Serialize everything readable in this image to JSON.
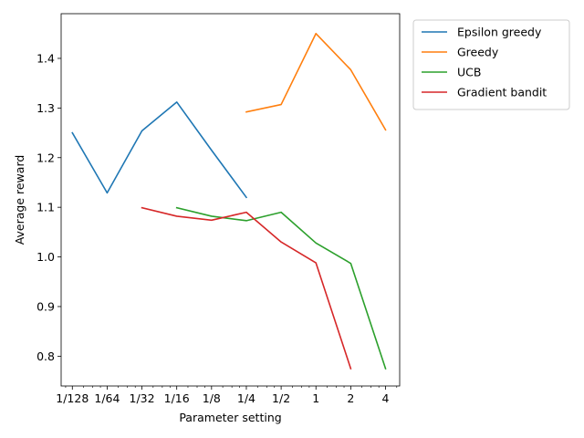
{
  "chart_data": {
    "type": "line",
    "xlabel": "Parameter setting",
    "ylabel": "Average reward",
    "xscale": "log2",
    "xlim": [
      0.00625,
      5.3
    ],
    "ylim": [
      0.74,
      1.49
    ],
    "x_tick_values": [
      0.0078125,
      0.015625,
      0.03125,
      0.0625,
      0.125,
      0.25,
      0.5,
      1,
      2,
      4
    ],
    "x_tick_labels": [
      "1/128",
      "1/64",
      "1/32",
      "1/16",
      "1/8",
      "1/4",
      "1/2",
      "1",
      "2",
      "4"
    ],
    "y_ticks": [
      0.8,
      0.9,
      1.0,
      1.1,
      1.2,
      1.3,
      1.4
    ],
    "y_tick_labels": [
      "0.8",
      "0.9",
      "1.0",
      "1.1",
      "1.2",
      "1.3",
      "1.4"
    ],
    "grid": false,
    "legend_position": "outside-top-right",
    "series": [
      {
        "name": "Epsilon greedy",
        "color": "#1f77b4",
        "x": [
          0.0078125,
          0.015625,
          0.03125,
          0.0625,
          0.125,
          0.25
        ],
        "values": [
          1.25,
          1.129,
          1.254,
          1.312,
          1.215,
          1.12
        ]
      },
      {
        "name": "Greedy",
        "color": "#ff7f0e",
        "x": [
          0.25,
          0.5,
          1,
          2,
          4
        ],
        "values": [
          1.292,
          1.307,
          1.45,
          1.377,
          1.256
        ]
      },
      {
        "name": "UCB",
        "color": "#2ca02c",
        "x": [
          0.0625,
          0.125,
          0.25,
          0.5,
          1,
          2,
          4
        ],
        "values": [
          1.099,
          1.082,
          1.073,
          1.09,
          1.028,
          0.987,
          0.775
        ]
      },
      {
        "name": "Gradient bandit",
        "color": "#d62728",
        "x": [
          0.03125,
          0.0625,
          0.125,
          0.25,
          0.5,
          1,
          2
        ],
        "values": [
          1.099,
          1.082,
          1.074,
          1.09,
          1.03,
          0.988,
          0.775
        ]
      }
    ]
  }
}
